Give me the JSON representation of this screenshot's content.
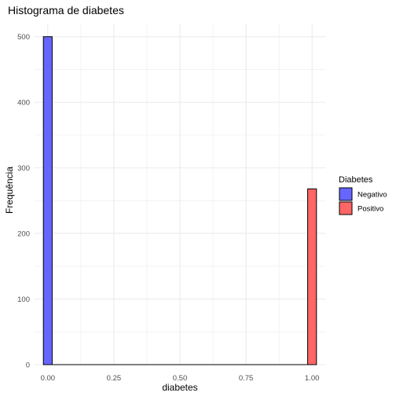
{
  "chart_data": {
    "type": "bar",
    "title": "Histograma de diabetes",
    "xlabel": "diabetes",
    "ylabel": "Frequência",
    "xlim": [
      -0.05,
      1.05
    ],
    "ylim": [
      0,
      520
    ],
    "x_ticks": [
      0.0,
      0.25,
      0.5,
      0.75,
      1.0
    ],
    "x_tick_labels": [
      "0.00",
      "0.25",
      "0.50",
      "0.75",
      "1.00"
    ],
    "y_ticks": [
      0,
      100,
      200,
      300,
      400,
      500
    ],
    "y_tick_labels": [
      "0",
      "100",
      "200",
      "300",
      "400",
      "500"
    ],
    "bin_width": 0.0333,
    "grid": true,
    "legend": {
      "title": "Diabetes",
      "placement": "right",
      "entries": [
        {
          "label": "Negativo",
          "color": "#6666ff"
        },
        {
          "label": "Positivo",
          "color": "#ff6666"
        }
      ]
    },
    "series": [
      {
        "name": "Negativo",
        "color": "#6666ff",
        "x": [
          0.0
        ],
        "values": [
          500
        ]
      },
      {
        "name": "Positivo",
        "color": "#ff6666",
        "x": [
          1.0
        ],
        "values": [
          268
        ]
      }
    ],
    "colors": {
      "grid": "#ebebeb",
      "text": "#000000",
      "tick_text": "#4d4d4d",
      "bar_outline": "#000000"
    }
  }
}
